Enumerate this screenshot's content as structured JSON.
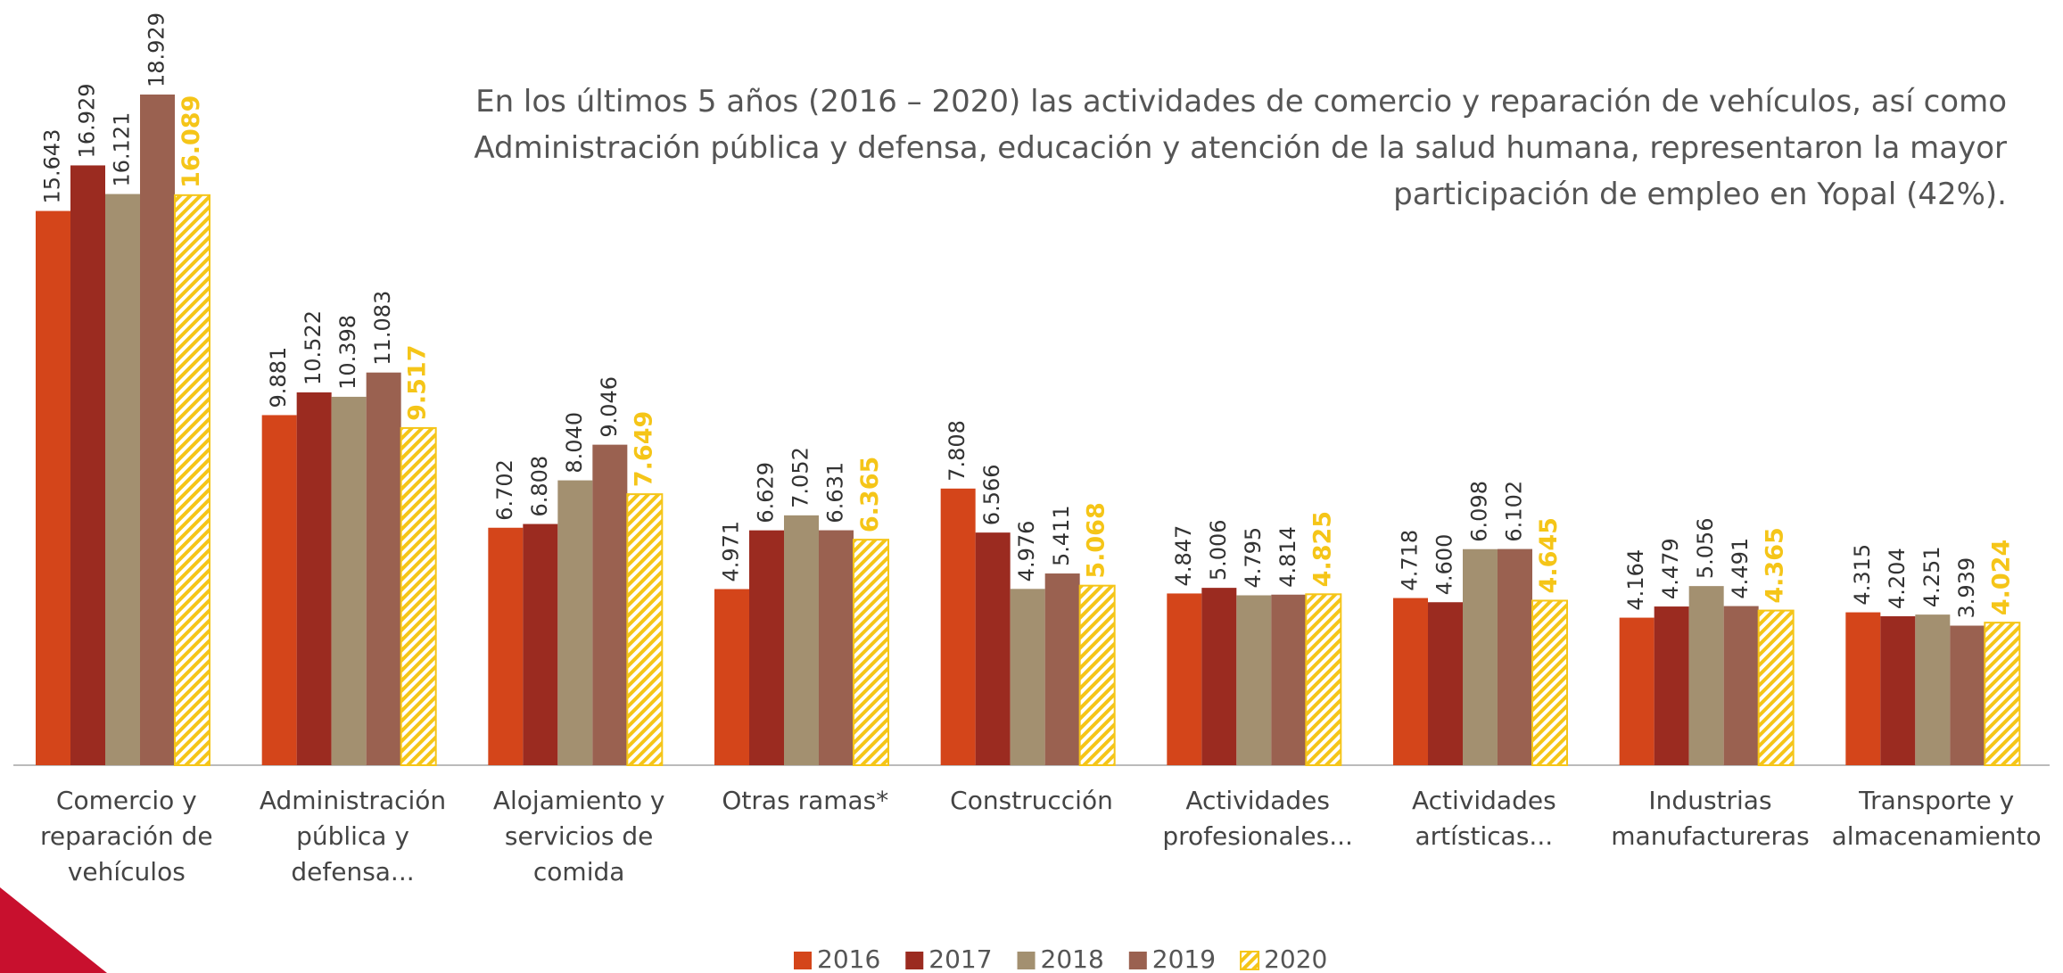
{
  "chart_data": {
    "type": "bar",
    "title": "En los últimos 5 años (2016 – 2020) las actividades de comercio y reparación de vehículos, así como Administración pública y defensa, educación y atención de la salud humana, representaron la mayor participación de empleo en Yopal (42%).",
    "categories": [
      "Comercio y reparación de vehículos",
      "Administración pública y defensa...",
      "Alojamiento y servicios de comida",
      "Otras ramas*",
      "Construcción",
      "Actividades profesionales...",
      "Actividades artísticas...",
      "Industrias manufactureras",
      "Transporte y almacenamiento"
    ],
    "series": [
      {
        "name": "2016",
        "color": "#d4451a",
        "values": [
          15643,
          9881,
          6702,
          4971,
          7808,
          4847,
          4718,
          4164,
          4315
        ],
        "value_labels": [
          "15.643",
          "9.881",
          "6.702",
          "4.971",
          "7.808",
          "4.847",
          "4.718",
          "4.164",
          "4.315"
        ]
      },
      {
        "name": "2017",
        "color": "#9b2b20",
        "values": [
          16929,
          10522,
          6808,
          6629,
          6566,
          5006,
          4600,
          4479,
          4204
        ],
        "value_labels": [
          "16.929",
          "10.522",
          "6.808",
          "6.629",
          "6.566",
          "5.006",
          "4.600",
          "4.479",
          "4.204"
        ]
      },
      {
        "name": "2018",
        "color": "#a39070",
        "values": [
          16121,
          10398,
          8040,
          7052,
          4976,
          4795,
          6098,
          5056,
          4251
        ],
        "value_labels": [
          "16.121",
          "10.398",
          "8.040",
          "7.052",
          "4.976",
          "4.795",
          "6.098",
          "5.056",
          "4.251"
        ]
      },
      {
        "name": "2019",
        "color": "#9a6150",
        "values": [
          18929,
          11083,
          9046,
          6631,
          5411,
          4814,
          6102,
          4491,
          3939
        ],
        "value_labels": [
          "18.929",
          "11.083",
          "9.046",
          "6.631",
          "5.411",
          "4.814",
          "6.102",
          "4.491",
          "3.939"
        ]
      },
      {
        "name": "2020",
        "color": "#f5c518",
        "pattern": "hatch",
        "values": [
          16089,
          9517,
          7649,
          6365,
          5068,
          4825,
          4645,
          4365,
          4024
        ],
        "value_labels": [
          "16.089",
          "9.517",
          "7.649",
          "6.365",
          "5.068",
          "4.825",
          "4.645",
          "4.365",
          "4.024"
        ]
      }
    ]
  }
}
